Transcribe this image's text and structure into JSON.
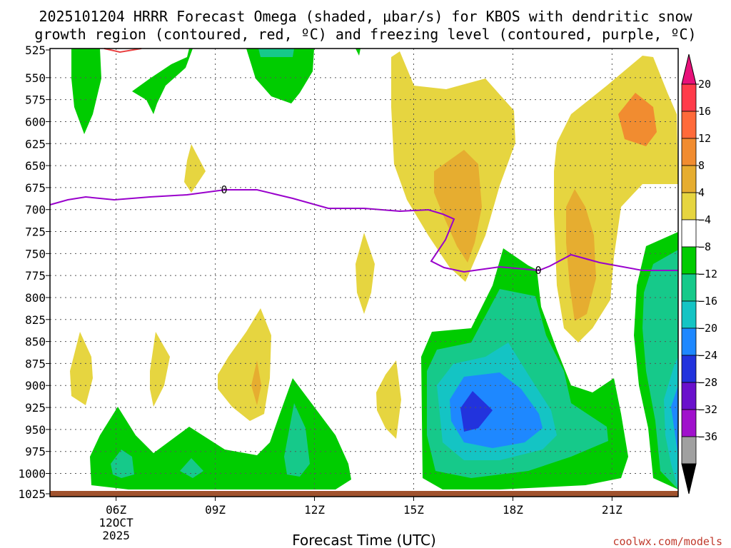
{
  "chart_data": {
    "type": "heatmap",
    "title_line1": "2025101204 HRRR Forecast Omega (shaded, μbar/s) for KBOS with dendritic snow",
    "title_line2": "growth region (contoured, red, ºC) and freezing level (contoured, purple, ºC)",
    "xlabel": "Forecast Time (UTC)",
    "credit": "coolwx.com/models",
    "x_hours": [
      3,
      22
    ],
    "x_ticks": [
      {
        "hour": 5,
        "label": "06Z",
        "sub1": "12OCT",
        "sub2": "2025"
      },
      {
        "hour": 8,
        "label": "09Z"
      },
      {
        "hour": 11,
        "label": "12Z"
      },
      {
        "hour": 14,
        "label": "15Z"
      },
      {
        "hour": 17,
        "label": "18Z"
      },
      {
        "hour": 20,
        "label": "21Z"
      }
    ],
    "y_levels": [
      "525",
      "550",
      "575",
      "600",
      "625",
      "650",
      "675",
      "700",
      "725",
      "750",
      "775",
      "800",
      "825",
      "850",
      "875",
      "900",
      "925",
      "950",
      "975",
      "1000",
      "1025"
    ],
    "colorbar_labels": [
      "20",
      "16",
      "12",
      "8",
      "4",
      "−4",
      "−8",
      "−12",
      "−16",
      "−20",
      "−24",
      "−28",
      "−32",
      "−36"
    ],
    "colorbar_colors": [
      "#ff3b4a",
      "#ff6a3a",
      "#f18c30",
      "#e6ad30",
      "#e6d540",
      "#ffffff",
      "#00cc00",
      "#16c98a",
      "#14c4c4",
      "#1e88ff",
      "#2233dd",
      "#6a11cc",
      "#a011cc",
      "#a0a0a0"
    ],
    "arrow_top_color": "#e8117a",
    "arrow_bottom_color": "#000000",
    "freezing_level_label": "0",
    "colors": {
      "green": "#00cc00",
      "teal": "#16c98a",
      "cyan": "#14c4c4",
      "blue": "#1e88ff",
      "darkblue": "#2233dd",
      "yellow": "#e6d540",
      "orange": "#e6ad30",
      "darkorange": "#f18c30",
      "freezing": "#9900cc",
      "dendritic": "#e84040",
      "ground": "#a0522d"
    }
  }
}
